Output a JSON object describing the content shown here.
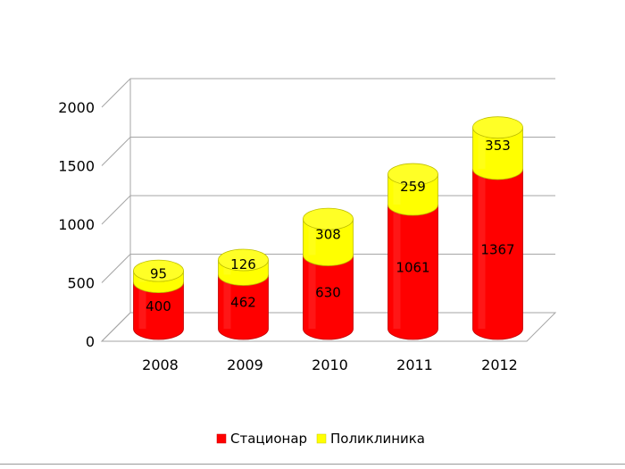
{
  "chart_data": {
    "type": "bar",
    "stacked": true,
    "style": "3d-cylinder",
    "categories": [
      "2008",
      "2009",
      "2010",
      "2011",
      "2012"
    ],
    "series": [
      {
        "name": "Стационар",
        "color": "#ff0000",
        "values": [
          400,
          462,
          630,
          1061,
          1367
        ]
      },
      {
        "name": "Поликлиника",
        "color": "#ffff00",
        "values": [
          95,
          126,
          308,
          259,
          353
        ]
      }
    ],
    "y_ticks": [
      0,
      500,
      1000,
      1500,
      2000
    ],
    "ylim": [
      0,
      2000
    ],
    "grid": true,
    "legend_position": "bottom",
    "title": "",
    "xlabel": "",
    "ylabel": ""
  }
}
